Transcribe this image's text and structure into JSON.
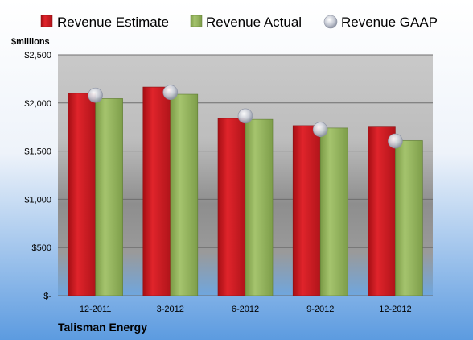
{
  "chart_data": {
    "type": "bar",
    "categories": [
      "12-2011",
      "3-2012",
      "6-2012",
      "9-2012",
      "12-2012"
    ],
    "series": [
      {
        "name": "Revenue Estimate",
        "values": [
          2100,
          2165,
          1840,
          1765,
          1750
        ],
        "color": "#c8161d"
      },
      {
        "name": "Revenue Actual",
        "values": [
          2045,
          2090,
          1830,
          1740,
          1610
        ],
        "color": "#8fb05a"
      }
    ],
    "points": {
      "name": "Revenue GAAP",
      "values": [
        2080,
        2110,
        1865,
        1725,
        1605
      ],
      "color": "#c6cad4"
    },
    "ylabel": "$millions",
    "ylim": [
      0,
      2500
    ],
    "yticks": [
      {
        "value": 0,
        "label": "$-"
      },
      {
        "value": 500,
        "label": "$500"
      },
      {
        "value": 1000,
        "label": "$1,000"
      },
      {
        "value": 1500,
        "label": "$1,500"
      },
      {
        "value": 2000,
        "label": "$2,000"
      },
      {
        "value": 2500,
        "label": "$2,500"
      }
    ],
    "grid": true,
    "legend_position": "top"
  },
  "company": "Talisman Energy"
}
